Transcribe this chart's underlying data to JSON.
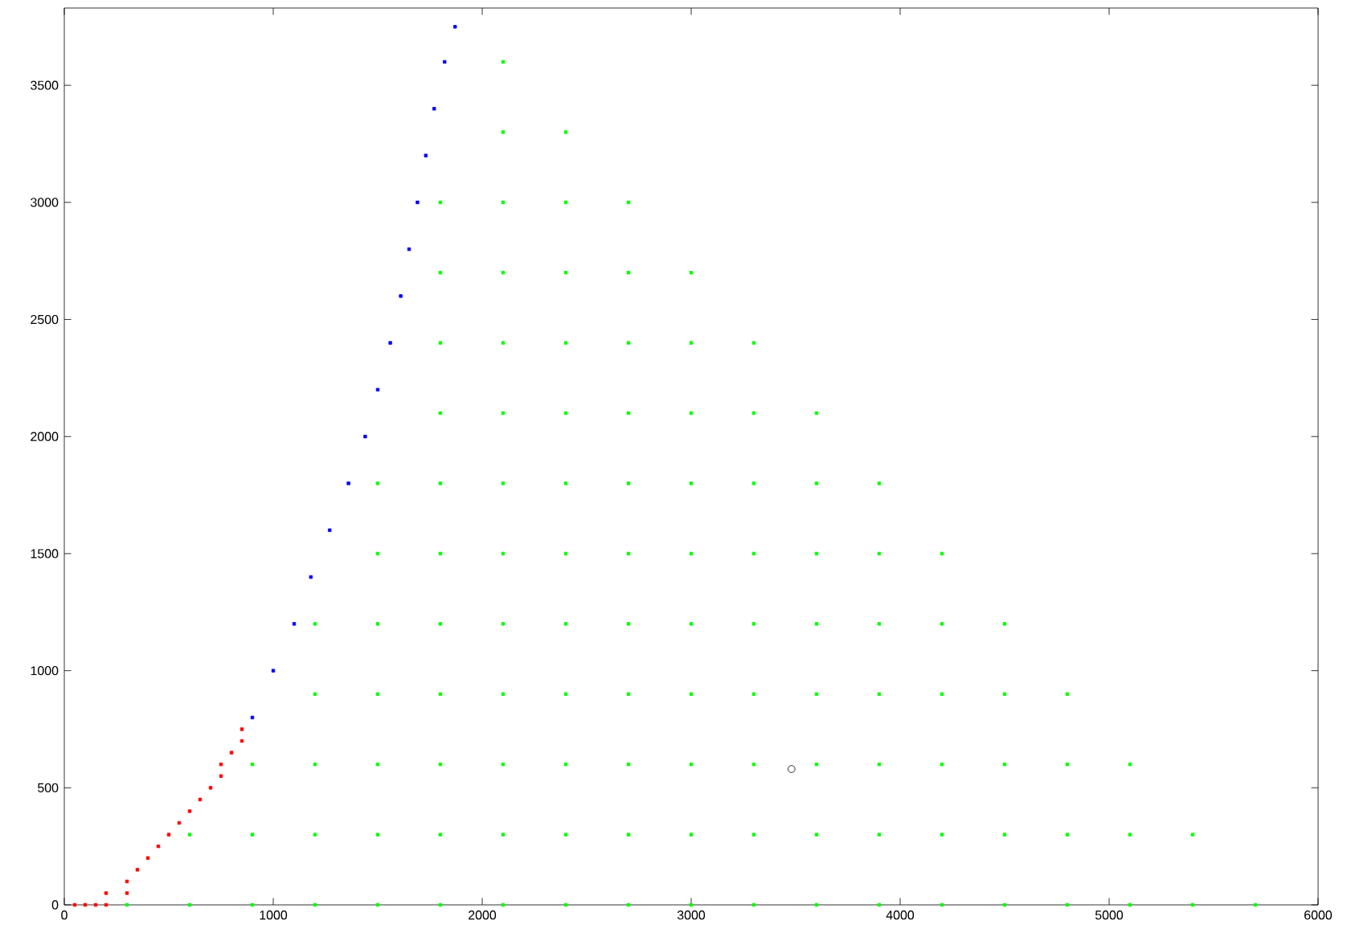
{
  "chart_data": {
    "type": "scatter",
    "marker": "square",
    "xlim": [
      0,
      6000
    ],
    "ylim": [
      0,
      3830
    ],
    "xticks": [
      0,
      1000,
      2000,
      3000,
      4000,
      5000,
      6000
    ],
    "yticks": [
      0,
      500,
      1000,
      1500,
      2000,
      2500,
      3000,
      3500
    ],
    "series": [
      {
        "color": "#ff0000",
        "x": [
          50,
          100,
          150,
          200,
          200,
          300,
          300,
          350,
          400,
          450,
          500,
          550,
          600,
          650,
          700,
          750,
          750,
          800,
          850,
          850
        ],
        "values": [
          0,
          0,
          0,
          0,
          50,
          50,
          100,
          150,
          200,
          250,
          300,
          350,
          400,
          450,
          500,
          550,
          600,
          650,
          700,
          750
        ]
      },
      {
        "color": "#0000ff",
        "x": [
          900,
          1000,
          1100,
          1180,
          1270,
          1360,
          1440,
          1500,
          1560,
          1610,
          1650,
          1690,
          1730,
          1770,
          1820,
          1870
        ],
        "values": [
          800,
          1000,
          1200,
          1400,
          1600,
          1800,
          2000,
          2200,
          2400,
          2600,
          2800,
          3000,
          3200,
          3400,
          3600,
          3750
        ]
      },
      {
        "color": "#00ff00",
        "x": [
          300,
          600,
          900,
          1200,
          1500,
          1800,
          2100,
          2400,
          2700,
          3000,
          3300,
          3600,
          3900,
          4200,
          4500,
          4800,
          5100,
          5400,
          5700,
          600,
          900,
          1200,
          1500,
          1800,
          2100,
          2400,
          2700,
          3000,
          3300,
          3600,
          3900,
          4200,
          4500,
          4800,
          5100,
          5400,
          900,
          1200,
          1500,
          1800,
          2100,
          2400,
          2700,
          3000,
          3300,
          3600,
          3900,
          4200,
          4500,
          4800,
          5100,
          1200,
          1500,
          1800,
          2100,
          2400,
          2700,
          3000,
          3300,
          3600,
          3900,
          4200,
          4500,
          4800,
          1200,
          1500,
          1800,
          2100,
          2400,
          2700,
          3000,
          3300,
          3600,
          3900,
          4200,
          4500,
          1500,
          1800,
          2100,
          2400,
          2700,
          3000,
          3300,
          3600,
          3900,
          4200,
          1500,
          1800,
          2100,
          2400,
          2700,
          3000,
          3300,
          3600,
          3900,
          1800,
          2100,
          2400,
          2700,
          3000,
          3300,
          3600,
          1800,
          2100,
          2400,
          2700,
          3000,
          3300,
          1800,
          2100,
          2400,
          2700,
          3000,
          1800,
          2100,
          2400,
          2700,
          2100,
          2400,
          2100
        ],
        "values": [
          0,
          0,
          0,
          0,
          0,
          0,
          0,
          0,
          0,
          0,
          0,
          0,
          0,
          0,
          0,
          0,
          0,
          0,
          0,
          300,
          300,
          300,
          300,
          300,
          300,
          300,
          300,
          300,
          300,
          300,
          300,
          300,
          300,
          300,
          300,
          300,
          600,
          600,
          600,
          600,
          600,
          600,
          600,
          600,
          600,
          600,
          600,
          600,
          600,
          600,
          600,
          900,
          900,
          900,
          900,
          900,
          900,
          900,
          900,
          900,
          900,
          900,
          900,
          900,
          1200,
          1200,
          1200,
          1200,
          1200,
          1200,
          1200,
          1200,
          1200,
          1200,
          1200,
          1200,
          1500,
          1500,
          1500,
          1500,
          1500,
          1500,
          1500,
          1500,
          1500,
          1500,
          1800,
          1800,
          1800,
          1800,
          1800,
          1800,
          1800,
          1800,
          1800,
          2100,
          2100,
          2100,
          2100,
          2100,
          2100,
          2100,
          2400,
          2400,
          2400,
          2400,
          2400,
          2400,
          2700,
          2700,
          2700,
          2700,
          2700,
          3000,
          3000,
          3000,
          3000,
          3300,
          3300,
          3600
        ]
      },
      {
        "color": "#000000",
        "marker": "circle",
        "x": [
          3480
        ],
        "values": [
          580
        ]
      }
    ]
  }
}
